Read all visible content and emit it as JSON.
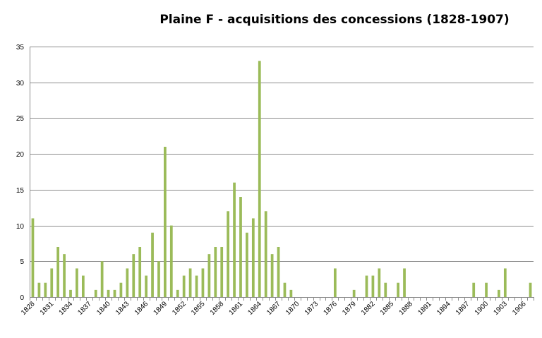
{
  "chart_data": {
    "type": "bar",
    "title": "Plaine F - acquisitions des concessions (1828-1907)",
    "xlabel": "",
    "ylabel": "",
    "ylim": [
      0,
      35
    ],
    "yticks": [
      0,
      5,
      10,
      15,
      20,
      25,
      30,
      35
    ],
    "grid": true,
    "legend": "none",
    "bar_color": "#9bbb59",
    "categories": [
      "1828",
      "1829",
      "1830",
      "1831",
      "1832",
      "1833",
      "1834",
      "1835",
      "1836",
      "1837",
      "1838",
      "1839",
      "1840",
      "1841",
      "1842",
      "1843",
      "1844",
      "1845",
      "1846",
      "1847",
      "1848",
      "1849",
      "1850",
      "1851",
      "1852",
      "1853",
      "1854",
      "1855",
      "1856",
      "1857",
      "1858",
      "1859",
      "1860",
      "1861",
      "1862",
      "1863",
      "1864",
      "1865",
      "1866",
      "1867",
      "1868",
      "1869",
      "1870",
      "1871",
      "1872",
      "1873",
      "1874",
      "1875",
      "1876",
      "1877",
      "1878",
      "1879",
      "1880",
      "1881",
      "1882",
      "1883",
      "1884",
      "1885",
      "1886",
      "1887",
      "1888",
      "1889",
      "1890",
      "1891",
      "1892",
      "1893",
      "1894",
      "1895",
      "1896",
      "1897",
      "1898",
      "1899",
      "1900",
      "1901",
      "1902",
      "1903",
      "1904",
      "1905",
      "1906",
      "1907"
    ],
    "tick_labels": [
      "1828",
      "1831",
      "1834",
      "1837",
      "1840",
      "1843",
      "1846",
      "1849",
      "1852",
      "1855",
      "1858",
      "1861",
      "1864",
      "1867",
      "1870",
      "1873",
      "1876",
      "1879",
      "1882",
      "1885",
      "1888",
      "1891",
      "1894",
      "1897",
      "1900",
      "1903",
      "1906"
    ],
    "values": [
      11,
      2,
      2,
      4,
      7,
      6,
      1,
      4,
      3,
      0,
      1,
      5,
      1,
      1,
      2,
      4,
      6,
      7,
      3,
      9,
      5,
      21,
      10,
      1,
      3,
      4,
      3,
      4,
      6,
      7,
      7,
      12,
      16,
      14,
      9,
      11,
      33,
      12,
      6,
      7,
      2,
      1,
      0,
      0,
      0,
      0,
      0,
      0,
      4,
      0,
      0,
      1,
      0,
      3,
      3,
      4,
      2,
      0,
      2,
      4,
      0,
      0,
      0,
      0,
      0,
      0,
      0,
      0,
      0,
      0,
      2,
      0,
      2,
      0,
      1,
      4,
      0,
      0,
      0,
      2
    ]
  }
}
